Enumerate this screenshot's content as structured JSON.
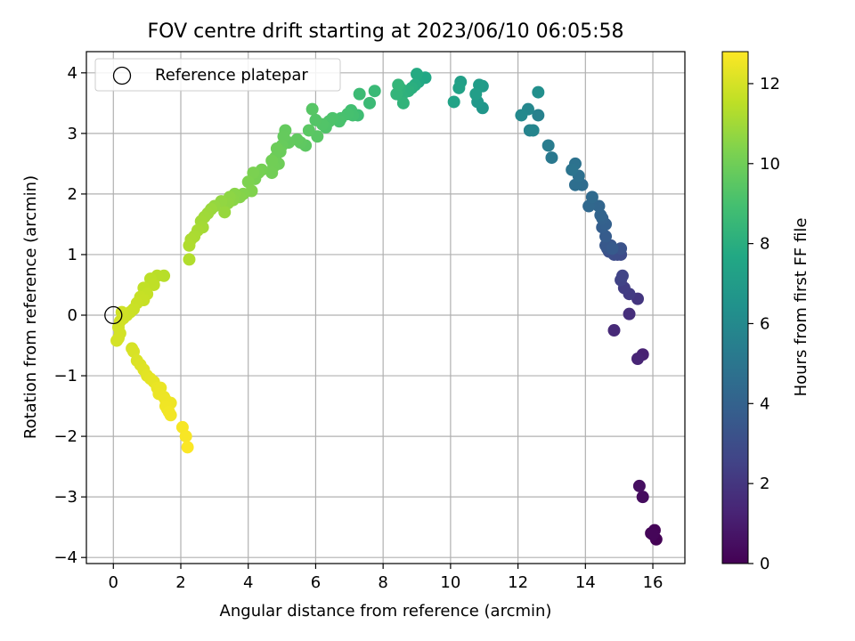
{
  "chart_data": {
    "type": "scatter",
    "title": "FOV centre drift starting at 2023/06/10 06:05:58",
    "xlabel": "Angular distance from reference (arcmin)",
    "ylabel": "Rotation from reference (arcmin)",
    "xlim": [
      -0.8,
      16.95
    ],
    "ylim": [
      -4.1,
      4.35
    ],
    "xticks": [
      0,
      2,
      4,
      6,
      8,
      10,
      12,
      14,
      16
    ],
    "yticks": [
      -4,
      -3,
      -2,
      -1,
      0,
      1,
      2,
      3,
      4
    ],
    "grid": true,
    "legend": {
      "placement": "upper-left",
      "entries": [
        {
          "label": "Reference platepar",
          "marker": "open-circle",
          "x": 0,
          "y": 0
        }
      ]
    },
    "colorbar": {
      "label": "Hours from first FF file",
      "range": [
        0,
        12.8
      ],
      "ticks": [
        0,
        2,
        4,
        6,
        8,
        10,
        12
      ],
      "colormap": "viridis"
    },
    "series": [
      {
        "values": [
          [
            16.1,
            -3.7,
            0.05
          ],
          [
            16.05,
            -3.55,
            0.1
          ],
          [
            15.95,
            -3.6,
            0.15
          ],
          [
            16.0,
            -3.62,
            0.2
          ],
          [
            15.7,
            -3.0,
            0.4
          ],
          [
            15.6,
            -2.82,
            0.5
          ],
          [
            15.7,
            -0.65,
            1.2
          ],
          [
            15.55,
            -0.72,
            1.3
          ],
          [
            14.85,
            -0.25,
            1.5
          ],
          [
            15.3,
            0.02,
            1.7
          ],
          [
            15.55,
            0.27,
            2.0
          ],
          [
            15.3,
            0.35,
            2.2
          ],
          [
            15.15,
            0.45,
            2.3
          ],
          [
            15.05,
            0.58,
            2.5
          ],
          [
            15.1,
            0.65,
            2.6
          ],
          [
            14.95,
            1.0,
            2.8
          ],
          [
            15.05,
            1.0,
            2.9
          ],
          [
            14.85,
            1.0,
            3.0
          ],
          [
            14.7,
            1.05,
            3.1
          ],
          [
            15.05,
            1.1,
            3.2
          ],
          [
            14.65,
            1.1,
            3.3
          ],
          [
            14.75,
            1.15,
            3.4
          ],
          [
            14.6,
            1.15,
            3.5
          ],
          [
            14.8,
            1.1,
            3.6
          ],
          [
            14.6,
            1.3,
            3.7
          ],
          [
            14.5,
            1.45,
            3.8
          ],
          [
            14.6,
            1.5,
            3.9
          ],
          [
            14.5,
            1.6,
            4.0
          ],
          [
            14.45,
            1.65,
            4.1
          ],
          [
            14.4,
            1.8,
            4.2
          ],
          [
            14.1,
            1.8,
            4.3
          ],
          [
            14.2,
            1.95,
            4.4
          ],
          [
            13.9,
            2.15,
            4.5
          ],
          [
            13.7,
            2.15,
            4.6
          ],
          [
            13.8,
            2.3,
            4.7
          ],
          [
            13.7,
            2.5,
            4.8
          ],
          [
            13.6,
            2.4,
            4.9
          ],
          [
            13.0,
            2.6,
            5.1
          ],
          [
            12.9,
            2.8,
            5.3
          ],
          [
            12.6,
            3.3,
            5.6
          ],
          [
            12.35,
            3.05,
            5.7
          ],
          [
            12.45,
            3.05,
            5.8
          ],
          [
            12.3,
            3.4,
            5.9
          ],
          [
            12.1,
            3.3,
            6.0
          ],
          [
            12.6,
            3.68,
            6.3
          ],
          [
            10.95,
            3.42,
            6.7
          ],
          [
            10.8,
            3.52,
            6.8
          ],
          [
            10.95,
            3.78,
            6.9
          ],
          [
            10.85,
            3.8,
            7.0
          ],
          [
            10.75,
            3.65,
            7.1
          ],
          [
            10.3,
            3.85,
            7.2
          ],
          [
            10.25,
            3.75,
            7.3
          ],
          [
            10.1,
            3.52,
            7.4
          ],
          [
            9.25,
            3.92,
            7.6
          ],
          [
            9.05,
            3.85,
            7.7
          ],
          [
            9.0,
            3.98,
            7.8
          ],
          [
            8.95,
            3.8,
            7.9
          ],
          [
            8.85,
            3.75,
            8.0
          ],
          [
            8.75,
            3.7,
            8.1
          ],
          [
            8.65,
            3.7,
            8.15
          ],
          [
            8.55,
            3.62,
            8.2
          ],
          [
            8.5,
            3.75,
            8.25
          ],
          [
            8.6,
            3.5,
            8.3
          ],
          [
            8.4,
            3.65,
            8.35
          ],
          [
            8.45,
            3.8,
            8.4
          ],
          [
            7.75,
            3.7,
            8.6
          ],
          [
            7.6,
            3.5,
            8.65
          ],
          [
            7.3,
            3.65,
            8.7
          ],
          [
            7.25,
            3.3,
            8.8
          ],
          [
            7.05,
            3.38,
            8.9
          ],
          [
            7.1,
            3.3,
            8.95
          ],
          [
            6.95,
            3.32,
            9.0
          ],
          [
            6.75,
            3.25,
            9.05
          ],
          [
            6.7,
            3.2,
            9.1
          ],
          [
            6.5,
            3.25,
            9.15
          ],
          [
            6.4,
            3.2,
            9.2
          ],
          [
            6.3,
            3.1,
            9.25
          ],
          [
            6.2,
            3.15,
            9.3
          ],
          [
            6.0,
            3.22,
            9.35
          ],
          [
            5.9,
            3.4,
            9.4
          ],
          [
            6.05,
            2.95,
            9.45
          ],
          [
            5.8,
            3.05,
            9.5
          ],
          [
            5.7,
            2.8,
            9.55
          ],
          [
            5.55,
            2.85,
            9.6
          ],
          [
            5.45,
            2.9,
            9.65
          ],
          [
            5.2,
            2.85,
            9.7
          ],
          [
            5.1,
            3.05,
            9.72
          ],
          [
            5.05,
            2.95,
            9.75
          ],
          [
            5.0,
            2.8,
            9.8
          ],
          [
            4.95,
            2.7,
            9.85
          ],
          [
            4.85,
            2.75,
            9.9
          ],
          [
            4.8,
            2.6,
            9.92
          ],
          [
            4.9,
            2.5,
            9.95
          ],
          [
            4.75,
            2.45,
            10.0
          ],
          [
            4.7,
            2.55,
            10.02
          ],
          [
            4.7,
            2.35,
            10.05
          ],
          [
            4.4,
            2.4,
            10.1
          ],
          [
            4.3,
            2.35,
            10.15
          ],
          [
            4.2,
            2.25,
            10.2
          ],
          [
            4.15,
            2.35,
            10.25
          ],
          [
            4.0,
            2.2,
            10.3
          ],
          [
            4.1,
            2.05,
            10.35
          ],
          [
            3.85,
            2.0,
            10.4
          ],
          [
            3.75,
            1.95,
            10.45
          ],
          [
            3.6,
            2.0,
            10.5
          ],
          [
            3.55,
            1.9,
            10.55
          ],
          [
            3.45,
            1.95,
            10.6
          ],
          [
            3.4,
            1.85,
            10.65
          ],
          [
            3.2,
            1.88,
            10.7
          ],
          [
            3.0,
            1.8,
            10.75
          ],
          [
            3.3,
            1.7,
            10.8
          ],
          [
            2.9,
            1.75,
            10.85
          ],
          [
            2.8,
            1.68,
            10.9
          ],
          [
            2.7,
            1.62,
            10.95
          ],
          [
            2.6,
            1.55,
            11.0
          ],
          [
            2.65,
            1.45,
            11.05
          ],
          [
            2.5,
            1.4,
            11.1
          ],
          [
            2.4,
            1.3,
            11.15
          ],
          [
            2.3,
            1.25,
            11.2
          ],
          [
            2.25,
            1.15,
            11.25
          ],
          [
            2.25,
            0.92,
            11.3
          ],
          [
            1.5,
            0.65,
            11.4
          ],
          [
            1.3,
            0.65,
            11.45
          ],
          [
            1.1,
            0.6,
            11.5
          ],
          [
            1.2,
            0.5,
            11.55
          ],
          [
            0.9,
            0.45,
            11.6
          ],
          [
            1.0,
            0.35,
            11.65
          ],
          [
            0.8,
            0.3,
            11.7
          ],
          [
            0.9,
            0.25,
            11.72
          ],
          [
            0.7,
            0.2,
            11.75
          ],
          [
            0.6,
            0.1,
            11.78
          ],
          [
            0.5,
            0.05,
            11.8
          ],
          [
            0.4,
            0.0,
            11.82
          ],
          [
            0.3,
            -0.05,
            11.85
          ],
          [
            0.25,
            0.05,
            11.87
          ],
          [
            0.2,
            -0.1,
            11.9
          ],
          [
            0.15,
            -0.2,
            11.92
          ],
          [
            0.2,
            -0.3,
            11.94
          ],
          [
            0.15,
            -0.38,
            11.96
          ],
          [
            0.1,
            -0.42,
            11.98
          ],
          [
            0.55,
            -0.55,
            12.0
          ],
          [
            0.6,
            -0.6,
            12.05
          ],
          [
            0.7,
            -0.75,
            12.1
          ],
          [
            0.8,
            -0.82,
            12.15
          ],
          [
            0.9,
            -0.9,
            12.2
          ],
          [
            1.0,
            -1.0,
            12.25
          ],
          [
            1.1,
            -1.05,
            12.3
          ],
          [
            1.2,
            -1.1,
            12.35
          ],
          [
            1.3,
            -1.2,
            12.4
          ],
          [
            1.4,
            -1.2,
            12.42
          ],
          [
            1.35,
            -1.3,
            12.44
          ],
          [
            1.5,
            -1.35,
            12.46
          ],
          [
            1.55,
            -1.4,
            12.48
          ],
          [
            1.7,
            -1.45,
            12.5
          ],
          [
            1.6,
            -1.55,
            12.52
          ],
          [
            1.55,
            -1.5,
            12.54
          ],
          [
            1.65,
            -1.6,
            12.56
          ],
          [
            1.7,
            -1.65,
            12.58
          ],
          [
            2.05,
            -1.85,
            12.65
          ],
          [
            2.15,
            -2.0,
            12.7
          ],
          [
            2.2,
            -2.18,
            12.75
          ]
        ]
      }
    ]
  }
}
